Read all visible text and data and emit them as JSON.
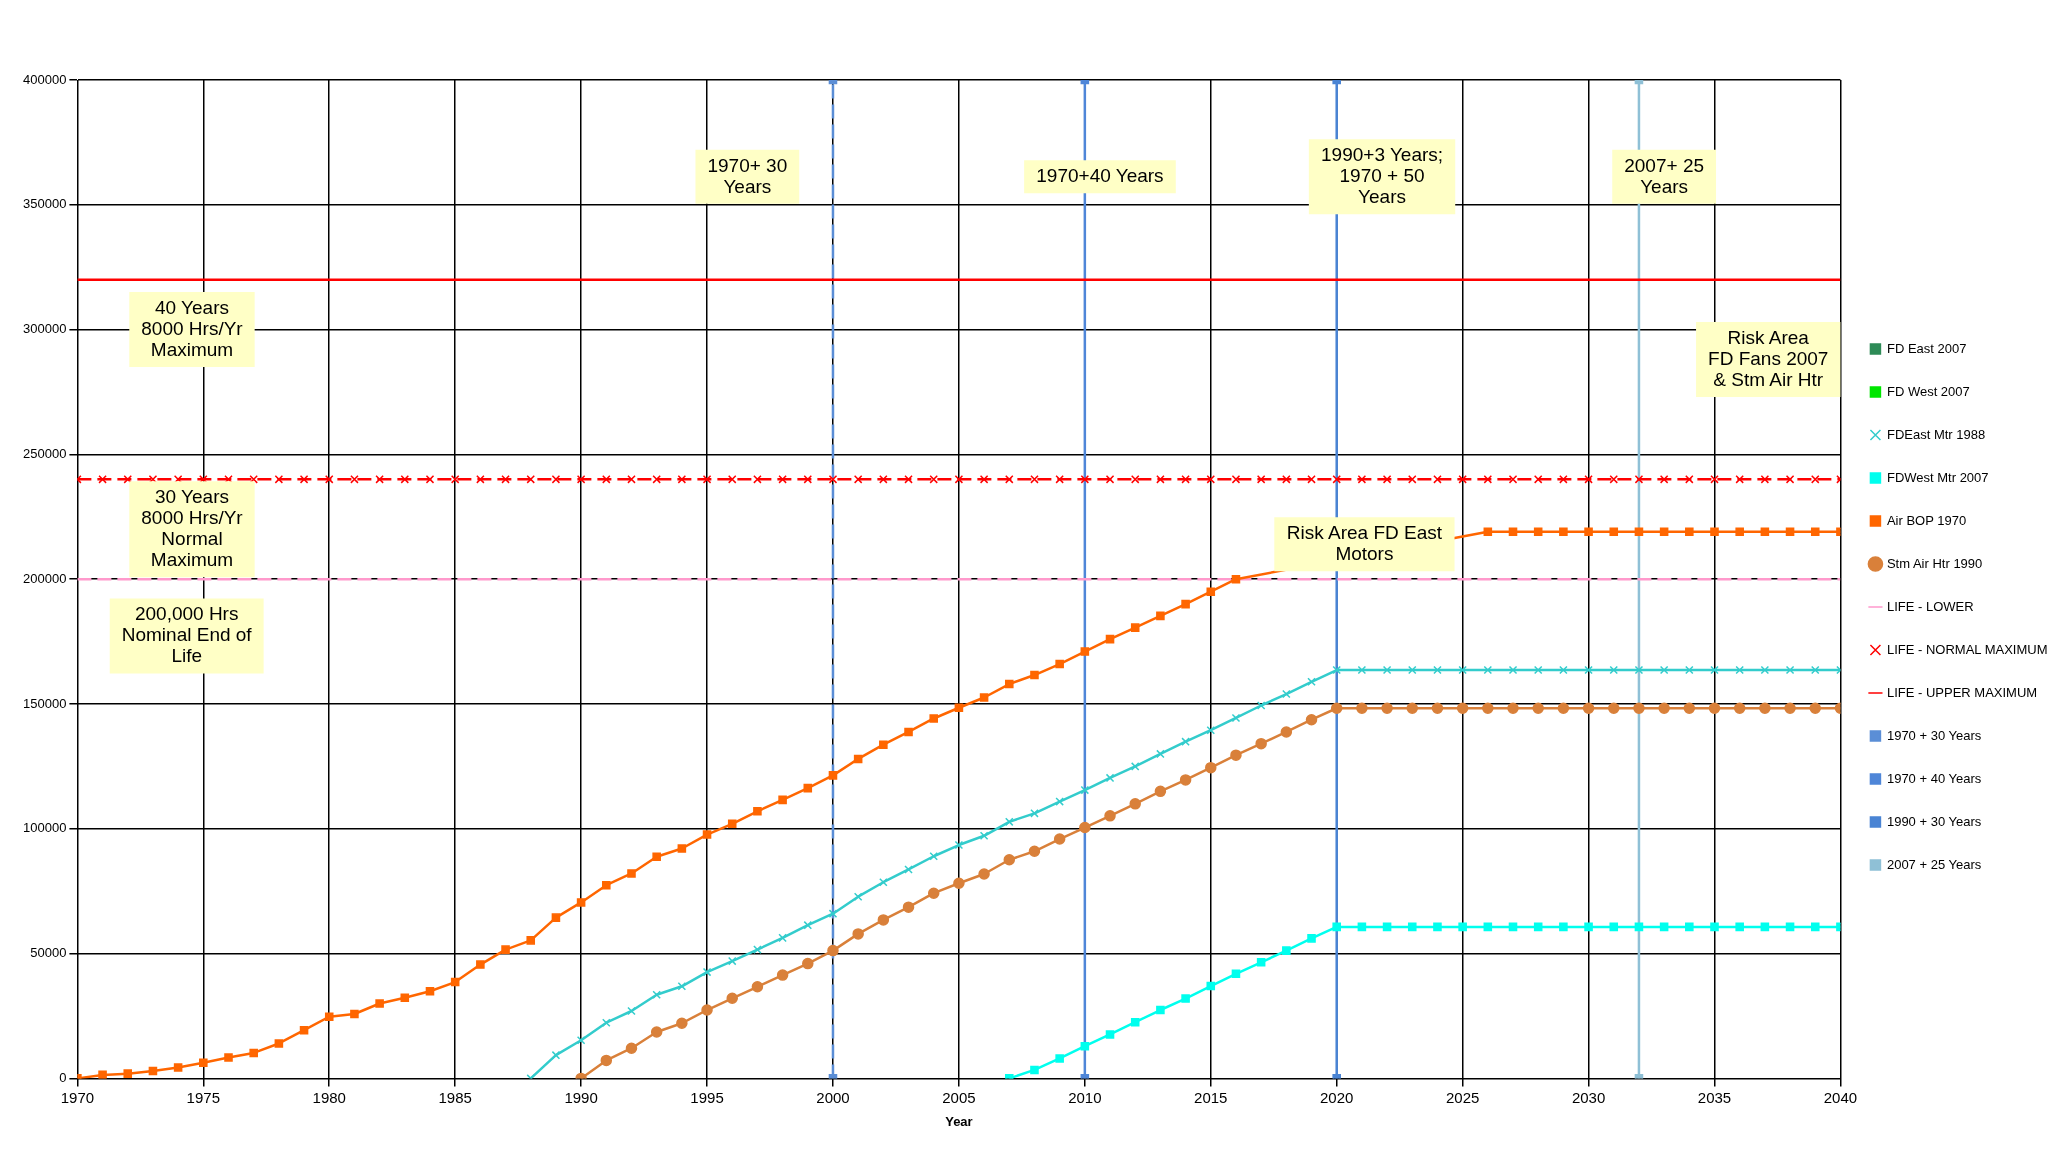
{
  "chart_data": {
    "type": "line",
    "xlabel": "Year",
    "x": [
      1970,
      1971,
      1972,
      1973,
      1974,
      1975,
      1976,
      1977,
      1978,
      1979,
      1980,
      1981,
      1982,
      1983,
      1984,
      1985,
      1986,
      1987,
      1988,
      1989,
      1990,
      1991,
      1992,
      1993,
      1994,
      1995,
      1996,
      1997,
      1998,
      1999,
      2000,
      2001,
      2002,
      2003,
      2004,
      2005,
      2006,
      2007,
      2008,
      2009,
      2010,
      2011,
      2012,
      2013,
      2014,
      2015,
      2016,
      2017,
      2018,
      2019,
      2020,
      2021,
      2022,
      2023,
      2024,
      2025,
      2026,
      2027,
      2028,
      2029,
      2030,
      2031,
      2032,
      2033,
      2034,
      2035,
      2036,
      2037,
      2038,
      2039,
      2040
    ],
    "xlim": [
      1970,
      2040
    ],
    "xticks": [
      1970,
      1975,
      1980,
      1985,
      1990,
      1995,
      2000,
      2005,
      2010,
      2015,
      2020,
      2025,
      2030,
      2035,
      2040
    ],
    "ylim": [
      0,
      400000
    ],
    "yticks": [
      0,
      50000,
      100000,
      150000,
      200000,
      250000,
      300000,
      350000,
      400000
    ],
    "grid": true,
    "legend": "right",
    "series": [
      {
        "name": "FD East 2007",
        "color": "#2e8b57",
        "marker": "square",
        "values": [
          null,
          null,
          null,
          null,
          null,
          null,
          null,
          null,
          null,
          null,
          null,
          null,
          null,
          null,
          null,
          null,
          null,
          null,
          null,
          null,
          null,
          null,
          null,
          null,
          null,
          null,
          null,
          null,
          null,
          null,
          null,
          null,
          null,
          null,
          null,
          null,
          null,
          null,
          null,
          null,
          null,
          null,
          null,
          null,
          null,
          null,
          null,
          null,
          null,
          null,
          null,
          null,
          null,
          null,
          null,
          null,
          null,
          null,
          null,
          null,
          null,
          null,
          null,
          null,
          null,
          null,
          null,
          null,
          null,
          null,
          null
        ]
      },
      {
        "name": "FD West 2007",
        "color": "#00e600",
        "marker": "square",
        "values": [
          null,
          null,
          null,
          null,
          null,
          null,
          null,
          null,
          null,
          null,
          null,
          null,
          null,
          null,
          null,
          null,
          null,
          null,
          null,
          null,
          null,
          null,
          null,
          null,
          null,
          null,
          null,
          null,
          null,
          null,
          null,
          null,
          null,
          null,
          null,
          null,
          null,
          null,
          null,
          null,
          null,
          null,
          null,
          null,
          null,
          null,
          null,
          null,
          null,
          null,
          null,
          null,
          null,
          null,
          null,
          null,
          null,
          null,
          null,
          null,
          null,
          null,
          null,
          null,
          null,
          null,
          null,
          null,
          null,
          null,
          null
        ]
      },
      {
        "name": "FDEast Mtr 1988",
        "color": "#33cccc",
        "marker": "cross",
        "values": [
          null,
          null,
          null,
          null,
          null,
          null,
          null,
          null,
          null,
          null,
          null,
          null,
          null,
          null,
          null,
          null,
          null,
          null,
          0,
          9300,
          15300,
          22300,
          27000,
          33500,
          36900,
          42600,
          47000,
          51600,
          56300,
          61400,
          66000,
          72800,
          78600,
          83700,
          89000,
          93500,
          97200,
          102800,
          106200,
          110900,
          115500,
          120400,
          125000,
          130000,
          134900,
          139500,
          144400,
          149400,
          154000,
          158900,
          163600,
          163600,
          163600,
          163600,
          163600,
          163600,
          163600,
          163600,
          163600,
          163600,
          163600,
          163600,
          163600,
          163600,
          163600,
          163600,
          163600,
          163600,
          163600,
          163600,
          163600
        ]
      },
      {
        "name": "FDWest Mtr 2007",
        "color": "#00ffee",
        "marker": "square",
        "values": [
          null,
          null,
          null,
          null,
          null,
          null,
          null,
          null,
          null,
          null,
          null,
          null,
          null,
          null,
          null,
          null,
          null,
          null,
          null,
          null,
          null,
          null,
          null,
          null,
          null,
          null,
          null,
          null,
          null,
          null,
          null,
          null,
          null,
          null,
          null,
          null,
          null,
          0,
          3400,
          8000,
          12900,
          17600,
          22500,
          27400,
          32000,
          37000,
          41900,
          46500,
          51200,
          56100,
          60700,
          60700,
          60700,
          60700,
          60700,
          60700,
          60700,
          60700,
          60700,
          60700,
          60700,
          60700,
          60700,
          60700,
          60700,
          60700,
          60700,
          60700,
          60700,
          60700,
          60700
        ]
      },
      {
        "name": "Air BOP 1970",
        "color": "#ff6600",
        "marker": "square",
        "values": [
          0,
          1400,
          1900,
          3000,
          4400,
          6300,
          8400,
          10200,
          14000,
          19300,
          24700,
          25800,
          30000,
          32300,
          34900,
          38600,
          45600,
          51600,
          55300,
          64400,
          70500,
          77400,
          82100,
          88800,
          92100,
          97700,
          102000,
          107000,
          111600,
          116300,
          121400,
          128000,
          133700,
          138800,
          144200,
          148500,
          152600,
          158000,
          161600,
          166000,
          171000,
          176000,
          180600,
          185300,
          190000,
          195000,
          200000,
          null,
          null,
          null,
          null,
          null,
          null,
          null,
          null,
          null,
          219000,
          219000,
          219000,
          219000,
          219000,
          219000,
          219000,
          219000,
          219000,
          219000,
          219000,
          219000,
          219000,
          219000,
          219000
        ]
      },
      {
        "name": "Stm Air Htr 1990",
        "color": "#d9803a",
        "marker": "circle",
        "values": [
          null,
          null,
          null,
          null,
          null,
          null,
          null,
          null,
          null,
          null,
          null,
          null,
          null,
          null,
          null,
          null,
          null,
          null,
          null,
          null,
          0,
          7200,
          12100,
          18600,
          22100,
          27400,
          32100,
          36700,
          41400,
          46000,
          51200,
          57900,
          63500,
          68600,
          74200,
          78200,
          81900,
          87600,
          91000,
          95900,
          100500,
          105200,
          110000,
          115000,
          119600,
          124500,
          129500,
          134100,
          138800,
          143700,
          148300,
          148300,
          148300,
          148300,
          148300,
          148300,
          148300,
          148300,
          148300,
          148300,
          148300,
          148300,
          148300,
          148300,
          148300,
          148300,
          148300,
          148300,
          148300,
          148300,
          148300
        ]
      },
      {
        "name": "LIFE - LOWER",
        "color": "#ff99cc",
        "marker": "none",
        "line_style": "dashed",
        "x": [
          1970,
          2040
        ],
        "values": [
          200000,
          200000
        ]
      },
      {
        "name": "LIFE - NORMAL MAXIMUM",
        "color": "#ff0000",
        "marker": "cross",
        "line_style": "dashed",
        "values": [
          240000,
          240000,
          240000,
          240000,
          240000,
          240000,
          240000,
          240000,
          240000,
          240000,
          240000,
          240000,
          240000,
          240000,
          240000,
          240000,
          240000,
          240000,
          240000,
          240000,
          240000,
          240000,
          240000,
          240000,
          240000,
          240000,
          240000,
          240000,
          240000,
          240000,
          240000,
          240000,
          240000,
          240000,
          240000,
          240000,
          240000,
          240000,
          240000,
          240000,
          240000,
          240000,
          240000,
          240000,
          240000,
          240000,
          240000,
          240000,
          240000,
          240000,
          240000,
          240000,
          240000,
          240000,
          240000,
          240000,
          240000,
          240000,
          240000,
          240000,
          240000,
          240000,
          240000,
          240000,
          240000,
          240000,
          240000,
          240000,
          240000,
          240000,
          240000
        ]
      },
      {
        "name": "LIFE - UPPER MAXIMUM",
        "color": "#ff0000",
        "marker": "none",
        "x": [
          1970,
          2040
        ],
        "values": [
          320000,
          320000
        ]
      },
      {
        "name": "1970 + 30 Years",
        "color": "#5b8ed6",
        "marker": "square",
        "line_style": "dashed",
        "x": [
          2000,
          2000
        ],
        "values": [
          0,
          400000
        ]
      },
      {
        "name": "1970 + 40 Years",
        "color": "#4f86d8",
        "marker": "square",
        "x": [
          2010,
          2010
        ],
        "values": [
          0,
          400000
        ]
      },
      {
        "name": "1990 + 30 Years",
        "color": "#4a84d4",
        "marker": "square",
        "x": [
          2020,
          2020
        ],
        "values": [
          0,
          400000
        ]
      },
      {
        "name": "2007 + 25 Years",
        "color": "#8fc0d6",
        "marker": "square",
        "x": [
          2032,
          2032
        ],
        "values": [
          0,
          400000
        ]
      }
    ],
    "annotations": [
      "1970+ 30\nYears",
      "1970+40 Years",
      "1990+3 Years;\n1970 + 50\nYears",
      "2007+ 25\nYears",
      "40 Years\n8000 Hrs/Yr\nMaximum",
      "30 Years\n8000 Hrs/Yr\nNormal\nMaximum",
      "200,000 Hrs\nNominal End of\nLife",
      "Risk Area FD East\nMotors",
      "Risk Area\nFD Fans 2007\n& Stm Air Htr"
    ]
  }
}
